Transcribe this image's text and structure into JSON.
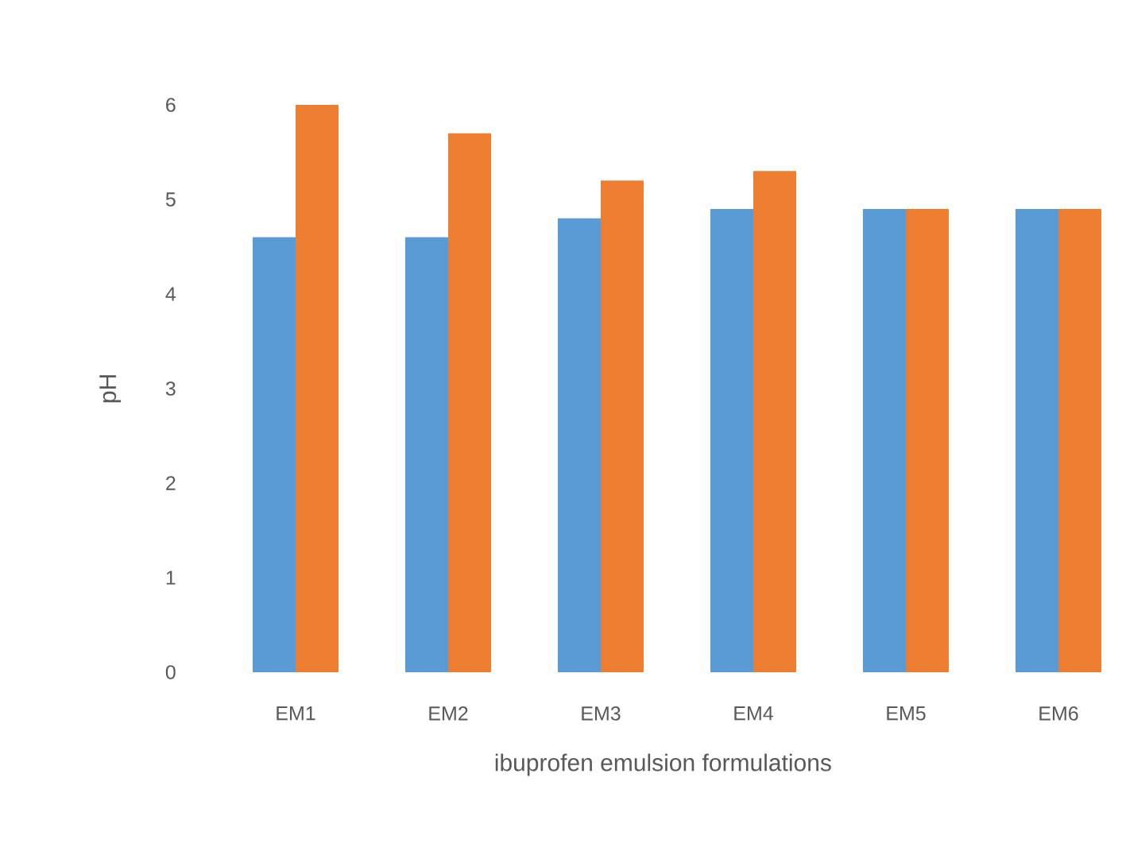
{
  "chart_data": {
    "type": "bar",
    "xlabel": "ibuprofen emulsion formulations",
    "ylabel": "pH",
    "categories": [
      "EM1",
      "EM2",
      "EM3",
      "EM4",
      "EM5",
      "EM6"
    ],
    "series": [
      {
        "color": "#5b9bd5",
        "values": [
          4.6,
          4.6,
          4.8,
          4.9,
          4.9,
          4.9
        ]
      },
      {
        "color": "#ed7d31",
        "values": [
          6.0,
          5.7,
          5.2,
          5.3,
          4.9,
          4.9
        ]
      }
    ],
    "ylim": [
      0,
      6
    ],
    "yticks": [
      0,
      1,
      2,
      3,
      4,
      5,
      6
    ]
  }
}
